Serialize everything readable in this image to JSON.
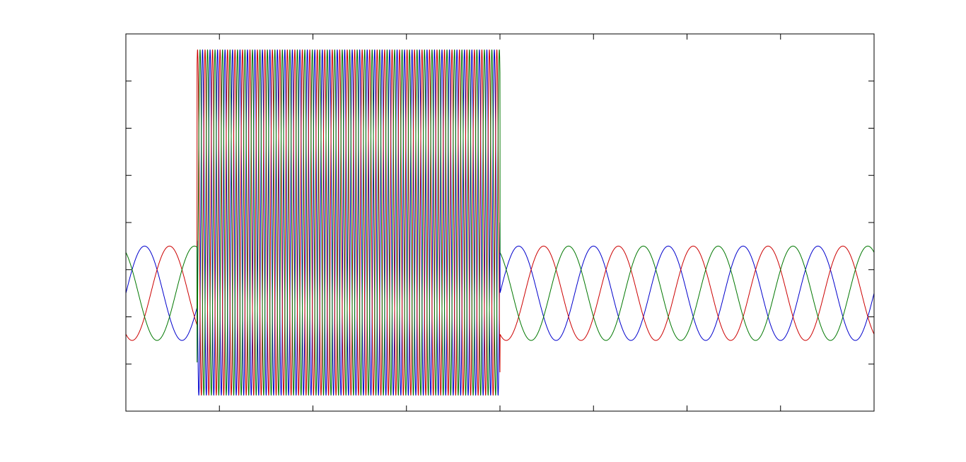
{
  "chart_data": {
    "type": "line",
    "title": "",
    "xlabel": "",
    "ylabel": "",
    "xlim": [
      0,
      0.2
    ],
    "ylim": [
      -1.2,
      1.2
    ],
    "x_ticks": [
      0,
      0.025,
      0.05,
      0.075,
      0.1,
      0.125,
      0.15,
      0.175,
      0.2
    ],
    "y_ticks": [
      -1.2,
      -0.9,
      -0.6,
      -0.3,
      0,
      0.3,
      0.6,
      0.9,
      1.2
    ],
    "grid": false,
    "legend": "none",
    "segments": [
      {
        "x_start": 0,
        "x_end": 0.019,
        "frequency_hz": 50,
        "amplitude": 0.3,
        "offset": -0.45
      },
      {
        "x_start": 0.019,
        "x_end": 0.1,
        "frequency_hz": 500,
        "amplitude": 1.1,
        "offset": 0
      },
      {
        "x_start": 0.1,
        "x_end": 0.2,
        "frequency_hz": 50,
        "amplitude": 0.3,
        "offset": -0.45
      }
    ],
    "series": [
      {
        "color": "#0000cc",
        "phase_deg": 0
      },
      {
        "color": "#cc0000",
        "phase_deg": -120
      },
      {
        "color": "#007700",
        "phase_deg": 120
      }
    ]
  }
}
